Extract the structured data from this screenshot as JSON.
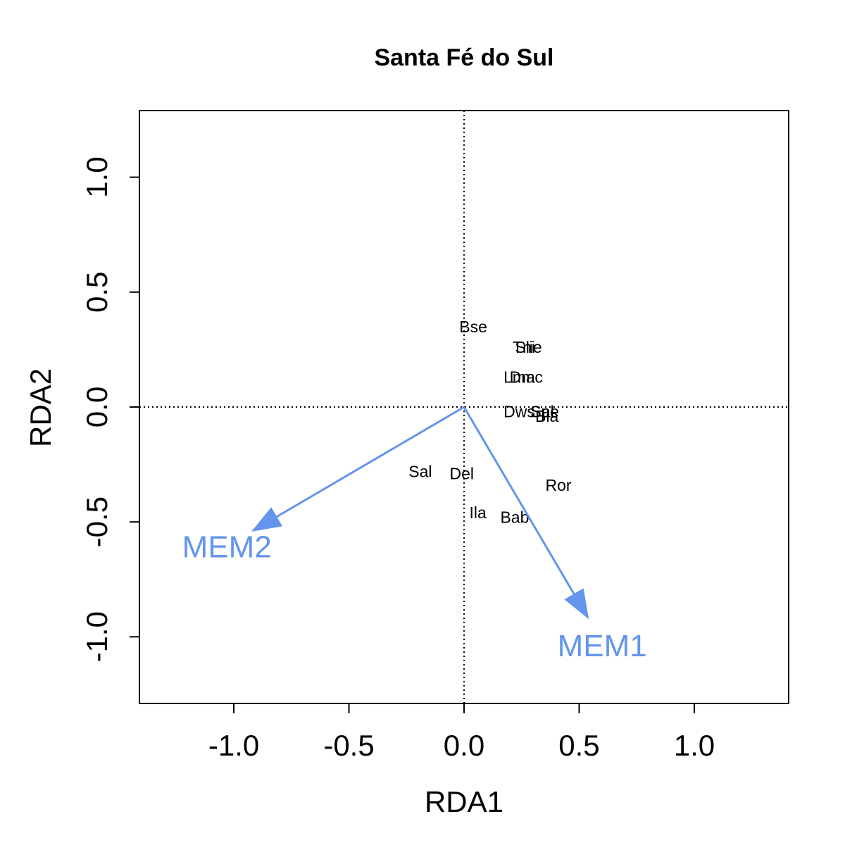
{
  "chart_data": {
    "type": "scatter",
    "title": "Santa Fé do Sul",
    "xlabel": "RDA1",
    "ylabel": "RDA2",
    "xlim": [
      -1.41,
      1.41
    ],
    "ylim": [
      -1.29,
      1.29
    ],
    "x_ticks": [
      -1.0,
      -0.5,
      0.0,
      0.5,
      1.0
    ],
    "x_tick_labels": [
      "-1.0",
      "-0.5",
      "0.0",
      "0.5",
      "1.0"
    ],
    "y_ticks": [
      -1.0,
      -0.5,
      0.0,
      0.5,
      1.0
    ],
    "y_tick_labels": [
      "-1.0",
      "-0.5",
      "0.0",
      "0.5",
      "1.0"
    ],
    "reference_lines": {
      "x": 0,
      "y": 0,
      "style": "dotted"
    },
    "grid": false,
    "sites": [
      {
        "label": "Bse",
        "x": 0.04,
        "y": 0.35
      },
      {
        "label": "Tni",
        "x": 0.26,
        "y": 0.26
      },
      {
        "label": "Slie",
        "x": 0.28,
        "y": 0.26
      },
      {
        "label": "Lma",
        "x": 0.24,
        "y": 0.13
      },
      {
        "label": "Dmc",
        "x": 0.27,
        "y": 0.13
      },
      {
        "label": "Dws",
        "x": 0.24,
        "y": -0.02
      },
      {
        "label": "Spe",
        "x": 0.35,
        "y": -0.02
      },
      {
        "label": "Sal",
        "x": 0.34,
        "y": -0.02
      },
      {
        "label": "Bla",
        "x": 0.36,
        "y": -0.04
      },
      {
        "label": "Sal",
        "x": -0.19,
        "y": -0.28
      },
      {
        "label": "Del",
        "x": -0.01,
        "y": -0.29
      },
      {
        "label": "Ror",
        "x": 0.41,
        "y": -0.34
      },
      {
        "label": "Ila",
        "x": 0.06,
        "y": -0.46
      },
      {
        "label": "Bab",
        "x": 0.22,
        "y": -0.48
      }
    ],
    "arrows": [
      {
        "label": "MEM1",
        "x": 0.54,
        "y": -0.92,
        "label_x": 0.6,
        "label_y": -1.04
      },
      {
        "label": "MEM2",
        "x": -0.92,
        "y": -0.54,
        "label_x": -1.03,
        "label_y": -0.61
      }
    ],
    "colors": {
      "arrow": "#6495ED",
      "axes": "#000000",
      "sites": "#000000"
    }
  }
}
